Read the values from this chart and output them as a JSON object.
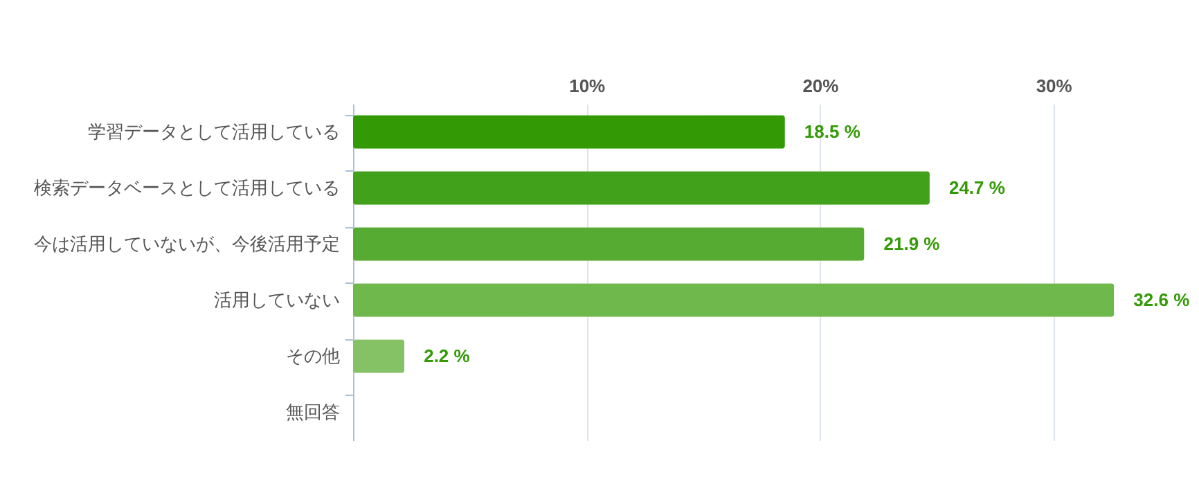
{
  "chart_data": {
    "type": "bar",
    "orientation": "horizontal",
    "categories": [
      "学習データとして活用している",
      "検索データベースとして活用している",
      "今は活用していないが、今後活用予定",
      "活用していない",
      "その他",
      "無回答"
    ],
    "values": [
      18.5,
      24.7,
      21.9,
      32.6,
      2.2,
      null
    ],
    "value_labels": [
      "18.5 %",
      "24.7 %",
      "21.9 %",
      "32.6 %",
      "2.2 %",
      null
    ],
    "colors": [
      "#339a05",
      "#41a11b",
      "#56ab32",
      "#6fb84b",
      "#85c266",
      "#9ccc80"
    ],
    "xlim": [
      0,
      36
    ],
    "xticks": [
      {
        "value": 10,
        "label": "10%"
      },
      {
        "value": 20,
        "label": "20%"
      },
      {
        "value": 30,
        "label": "30%"
      }
    ],
    "grid": "x"
  }
}
